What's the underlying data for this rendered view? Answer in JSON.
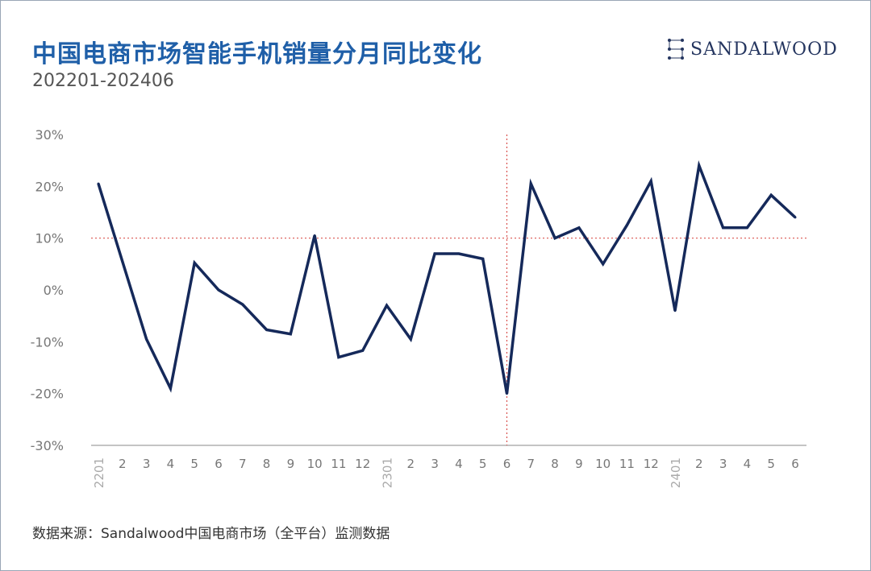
{
  "header": {
    "title": "中国电商市场智能手机销量分月同比变化",
    "subtitle": "202201-202406"
  },
  "logo": {
    "text": "SANDALWOOD",
    "icon": "constellation-icon"
  },
  "footer": {
    "source": "数据来源：Sandalwood中国电商市场（全平台）监测数据"
  },
  "colors": {
    "title": "#1f5fa8",
    "line": "#15295a",
    "reference": "#d9534f",
    "axis": "#888888"
  },
  "chart_data": {
    "type": "line",
    "title": "中国电商市场智能手机销量分月同比变化",
    "subtitle": "202201-202406",
    "xlabel": "",
    "ylabel": "",
    "ylim": [
      -0.3,
      0.3
    ],
    "y_ticks": [
      0.3,
      0.2,
      0.1,
      0,
      -0.1,
      -0.2,
      -0.3
    ],
    "y_tick_labels": [
      "30%",
      "20%",
      "10%",
      "0%",
      "-10%",
      "-20%",
      "-30%"
    ],
    "grid": false,
    "categories": [
      "2201",
      "2",
      "3",
      "4",
      "5",
      "6",
      "7",
      "8",
      "9",
      "10",
      "11",
      "12",
      "2301",
      "2",
      "3",
      "4",
      "5",
      "6",
      "7",
      "8",
      "9",
      "10",
      "11",
      "12",
      "2401",
      "2",
      "3",
      "4",
      "5",
      "6"
    ],
    "rotated_labels": [
      "2201",
      "2301",
      "2401"
    ],
    "series": [
      {
        "values": [
          0.205,
          0.055,
          -0.095,
          -0.19,
          0.052,
          0.0,
          -0.028,
          -0.077,
          -0.085,
          0.105,
          -0.13,
          -0.117,
          -0.03,
          -0.095,
          0.07,
          0.07,
          0.06,
          -0.2,
          0.205,
          0.1,
          0.12,
          0.05,
          0.125,
          0.21,
          -0.04,
          0.24,
          0.12,
          0.12,
          0.183,
          0.14
        ]
      }
    ],
    "reference_lines": {
      "horizontal": 0.1,
      "vertical_at_category_index": 17
    }
  }
}
